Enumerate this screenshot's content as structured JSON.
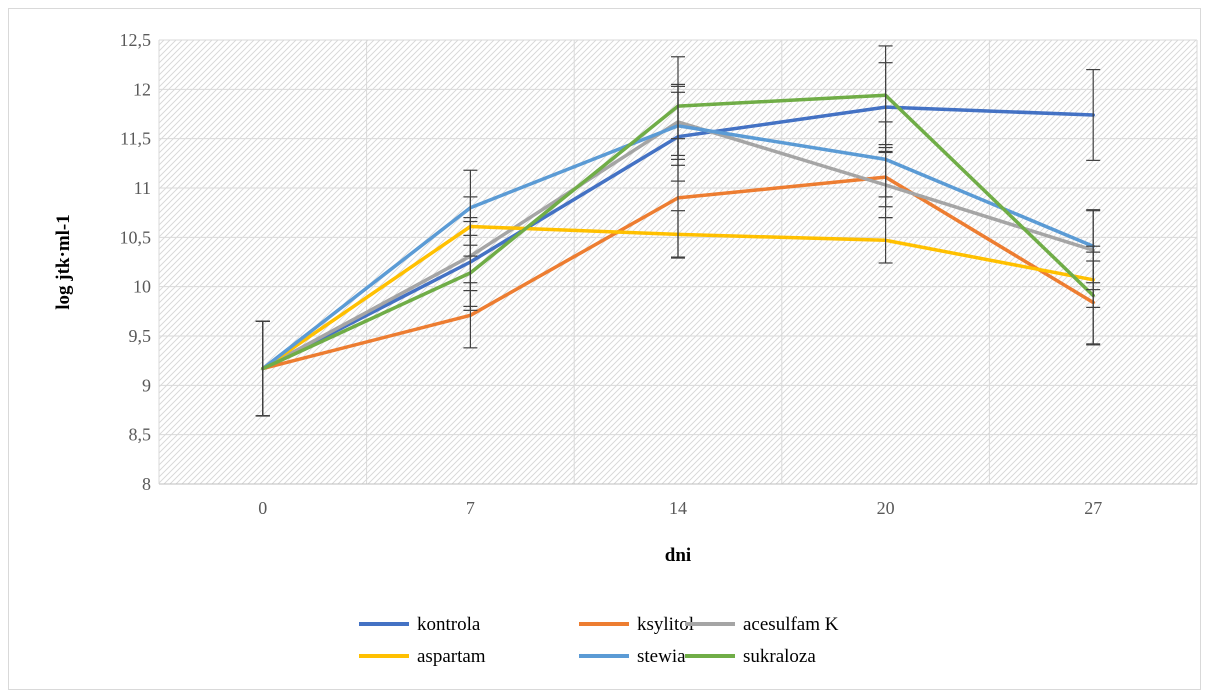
{
  "chart_data": {
    "type": "line",
    "xlabel": "dni",
    "ylabel": "log jtk·ml-1",
    "categories": [
      "0",
      "7",
      "14",
      "20",
      "27"
    ],
    "ylim": [
      8,
      12.5
    ],
    "yticks": [
      8,
      8.5,
      9,
      9.5,
      10,
      10.5,
      11,
      11.5,
      12,
      12.5
    ],
    "ytick_labels": [
      "8",
      "8,5",
      "9",
      "9,5",
      "10",
      "10,5",
      "11",
      "11,5",
      "12",
      "12,5"
    ],
    "grid": true,
    "legend_position": "bottom",
    "series": [
      {
        "name": "kontrola",
        "color": "#4472C4",
        "values": [
          9.17,
          10.25,
          11.52,
          11.82,
          11.74
        ],
        "errors": [
          0.48,
          0.45,
          0.45,
          0.45,
          0.46
        ]
      },
      {
        "name": "ksylitol",
        "color": "#ED7D31",
        "values": [
          9.17,
          9.71,
          10.9,
          11.11,
          9.84
        ],
        "errors": [
          0.48,
          0.33,
          0.6,
          0.3,
          0.42
        ]
      },
      {
        "name": "acesulfam K",
        "color": "#A5A5A5",
        "values": [
          9.17,
          10.31,
          11.67,
          11.03,
          10.37
        ],
        "errors": [
          0.48,
          0.35,
          0.38,
          0.33,
          0.4
        ]
      },
      {
        "name": "aspartam",
        "color": "#FFC000",
        "values": [
          9.17,
          10.61,
          10.53,
          10.47,
          10.07
        ],
        "errors": [
          0.48,
          0.3,
          0.24,
          0.23,
          0.28
        ]
      },
      {
        "name": "stewia",
        "color": "#5B9BD5",
        "values": [
          9.17,
          10.8,
          11.63,
          11.29,
          10.41
        ],
        "errors": [
          0.48,
          0.38,
          0.4,
          0.38,
          0.37
        ]
      },
      {
        "name": "sukraloza",
        "color": "#70AD47",
        "values": [
          9.17,
          10.14,
          11.83,
          11.94,
          9.91
        ],
        "errors": [
          0.48,
          0.38,
          0.5,
          0.5,
          0.5
        ]
      }
    ]
  }
}
